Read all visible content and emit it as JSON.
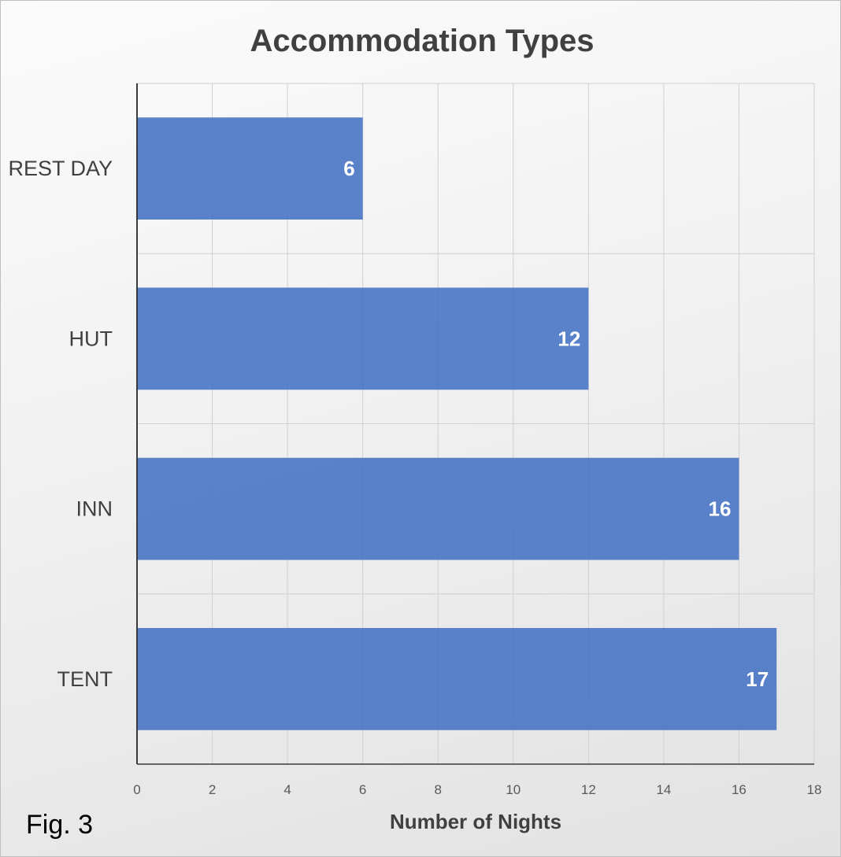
{
  "figure_label": "Fig. 3",
  "colors": {
    "bar": "#4472c4",
    "gridline": "#d0d0d0",
    "axis_line": "#3a3a3a",
    "data_label": "#ffffff"
  },
  "chart_data": {
    "type": "bar",
    "orientation": "horizontal",
    "title": "Accommodation Types",
    "xlabel": "Number of Nights",
    "ylabel": "",
    "categories": [
      "REST DAY",
      "HUT",
      "INN",
      "TENT"
    ],
    "values": [
      6,
      12,
      16,
      17
    ],
    "xlim": [
      0,
      18
    ],
    "x_ticks": [
      0,
      2,
      4,
      6,
      8,
      10,
      12,
      14,
      16,
      18
    ],
    "data_labels": true,
    "grid": true,
    "legend": "none"
  }
}
